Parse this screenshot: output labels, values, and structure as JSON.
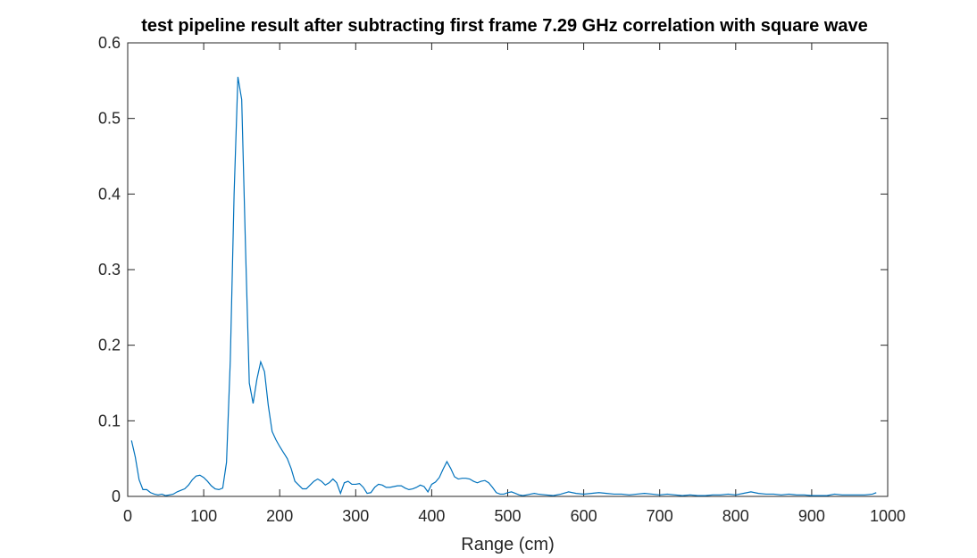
{
  "chart_data": {
    "type": "line",
    "title": "test pipeline result after subtracting first frame 7.29 GHz correlation with square wave",
    "xlabel": "Range (cm)",
    "ylabel": "",
    "xlim": [
      0,
      1000
    ],
    "ylim": [
      0,
      0.6
    ],
    "xticks": [
      0,
      100,
      200,
      300,
      400,
      500,
      600,
      700,
      800,
      900,
      1000
    ],
    "yticks": [
      0,
      0.1,
      0.2,
      0.3,
      0.4,
      0.5,
      0.6
    ],
    "grid": false,
    "line_color": "#0072BD",
    "series": [
      {
        "x": [
          5,
          10,
          15,
          20,
          25,
          30,
          35,
          40,
          45,
          50,
          55,
          60,
          65,
          70,
          75,
          80,
          85,
          90,
          95,
          100,
          105,
          110,
          115,
          120,
          125,
          130,
          135,
          140,
          145,
          150,
          155,
          160,
          165,
          170,
          175,
          180,
          185,
          190,
          195,
          200,
          205,
          210,
          215,
          220,
          225,
          230,
          235,
          240,
          245,
          250,
          255,
          260,
          265,
          270,
          275,
          280,
          285,
          290,
          295,
          300,
          305,
          310,
          315,
          320,
          325,
          330,
          335,
          340,
          345,
          350,
          355,
          360,
          365,
          370,
          375,
          380,
          385,
          390,
          395,
          400,
          405,
          410,
          415,
          420,
          425,
          430,
          435,
          440,
          445,
          450,
          455,
          460,
          465,
          470,
          475,
          480,
          485,
          490,
          495,
          500,
          505,
          510,
          515,
          520,
          525,
          530,
          535,
          540,
          550,
          560,
          570,
          580,
          590,
          600,
          610,
          620,
          630,
          640,
          650,
          660,
          670,
          680,
          690,
          700,
          710,
          720,
          730,
          740,
          750,
          760,
          770,
          780,
          790,
          800,
          810,
          820,
          830,
          840,
          850,
          860,
          870,
          880,
          890,
          900,
          910,
          920,
          930,
          940,
          950,
          960,
          970,
          980,
          985
        ],
        "y": [
          0.074,
          0.052,
          0.022,
          0.009,
          0.009,
          0.005,
          0.003,
          0.002,
          0.003,
          0.001,
          0.002,
          0.003,
          0.006,
          0.008,
          0.01,
          0.015,
          0.022,
          0.027,
          0.028,
          0.025,
          0.02,
          0.014,
          0.01,
          0.009,
          0.011,
          0.045,
          0.18,
          0.4,
          0.555,
          0.525,
          0.33,
          0.15,
          0.123,
          0.155,
          0.178,
          0.165,
          0.12,
          0.086,
          0.075,
          0.066,
          0.058,
          0.05,
          0.037,
          0.02,
          0.015,
          0.01,
          0.01,
          0.015,
          0.02,
          0.023,
          0.02,
          0.015,
          0.018,
          0.023,
          0.018,
          0.004,
          0.018,
          0.02,
          0.016,
          0.016,
          0.017,
          0.012,
          0.004,
          0.005,
          0.012,
          0.016,
          0.015,
          0.012,
          0.012,
          0.013,
          0.014,
          0.014,
          0.011,
          0.009,
          0.01,
          0.012,
          0.015,
          0.013,
          0.006,
          0.016,
          0.019,
          0.025,
          0.036,
          0.046,
          0.037,
          0.026,
          0.023,
          0.024,
          0.024,
          0.023,
          0.02,
          0.018,
          0.02,
          0.021,
          0.018,
          0.012,
          0.005,
          0.003,
          0.003,
          0.005,
          0.006,
          0.004,
          0.002,
          0.001,
          0.002,
          0.003,
          0.004,
          0.003,
          0.002,
          0.001,
          0.003,
          0.006,
          0.004,
          0.003,
          0.004,
          0.005,
          0.004,
          0.003,
          0.003,
          0.002,
          0.003,
          0.004,
          0.003,
          0.002,
          0.003,
          0.002,
          0.001,
          0.002,
          0.001,
          0.001,
          0.002,
          0.002,
          0.003,
          0.002,
          0.004,
          0.006,
          0.004,
          0.003,
          0.003,
          0.002,
          0.003,
          0.002,
          0.002,
          0.001,
          0.001,
          0.001,
          0.003,
          0.002,
          0.002,
          0.002,
          0.002,
          0.003,
          0.005
        ]
      }
    ]
  }
}
